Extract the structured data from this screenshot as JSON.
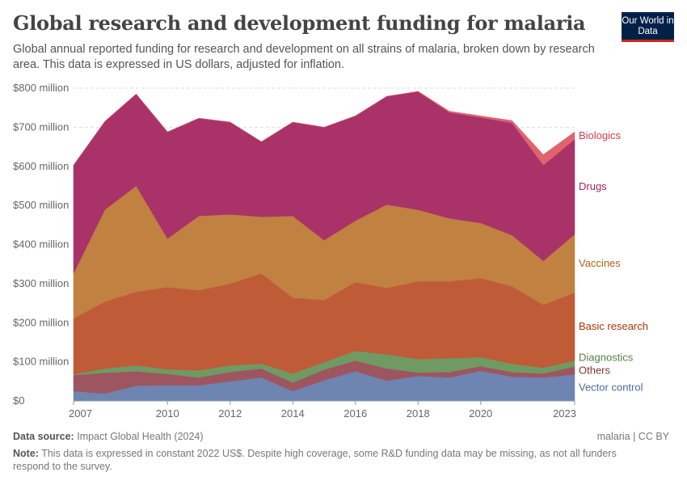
{
  "header": {
    "title": "Global research and development funding for malaria",
    "subtitle": "Global annual reported funding for research and development on all strains of malaria, broken down by research area. This data is expressed in US dollars, adjusted for inflation.",
    "logo": "Our World in Data"
  },
  "chart_data": {
    "type": "area",
    "stacked": true,
    "title": "Global research and development funding for malaria",
    "xlabel": "",
    "ylabel": "",
    "ylim": [
      0,
      800
    ],
    "y_unit": "million US$ (constant 2022)",
    "grid": true,
    "y_ticks": [
      "$0",
      "$100 million",
      "$200 million",
      "$300 million",
      "$400 million",
      "$500 million",
      "$600 million",
      "$700 million",
      "$800 million"
    ],
    "x_ticks": [
      "2007",
      "2010",
      "2012",
      "2014",
      "2016",
      "2018",
      "2020",
      "2023"
    ],
    "x": [
      2007,
      2008,
      2009,
      2010,
      2011,
      2012,
      2013,
      2014,
      2015,
      2016,
      2017,
      2018,
      2019,
      2020,
      2021,
      2022,
      2023
    ],
    "legend_placement": "right (inline labels)",
    "series": [
      {
        "name": "Vector control",
        "color": "#6d85b0",
        "label_color": "#4c6a9c",
        "values": [
          25,
          19,
          39,
          40,
          40,
          50,
          60,
          25,
          53,
          76,
          52,
          64,
          60,
          77,
          62,
          60,
          68
        ]
      },
      {
        "name": "Others",
        "color": "#9e5560",
        "label_color": "#883039",
        "values": [
          41,
          53,
          37,
          29,
          20,
          24,
          23,
          22,
          27,
          27,
          31,
          9,
          14,
          12,
          12,
          10,
          20
        ]
      },
      {
        "name": "Diagnostics",
        "color": "#6f9a63",
        "label_color": "#578145",
        "values": [
          2,
          11,
          15,
          12,
          18,
          17,
          12,
          23,
          19,
          25,
          36,
          34,
          35,
          23,
          21,
          15,
          15
        ]
      },
      {
        "name": "Basic research",
        "color": "#c05b37",
        "label_color": "#b13507",
        "values": [
          143,
          171,
          188,
          210,
          205,
          209,
          231,
          194,
          159,
          176,
          170,
          199,
          197,
          202,
          198,
          161,
          174
        ]
      },
      {
        "name": "Vaccines",
        "color": "#c08141",
        "label_color": "#b16214",
        "values": [
          115,
          235,
          271,
          124,
          190,
          177,
          145,
          209,
          153,
          157,
          213,
          183,
          161,
          141,
          131,
          112,
          149
        ]
      },
      {
        "name": "Drugs",
        "color": "#a93368",
        "label_color": "#a2275d",
        "values": [
          277,
          226,
          235,
          273,
          250,
          236,
          192,
          240,
          289,
          268,
          277,
          302,
          271,
          270,
          287,
          245,
          243
        ]
      },
      {
        "name": "Biologics",
        "color": "#e0636e",
        "label_color": "#d73c50",
        "values": [
          0,
          0,
          0,
          0,
          0,
          0,
          0,
          0,
          0,
          0,
          0,
          1,
          3,
          4,
          6,
          27,
          19
        ]
      }
    ]
  },
  "footer": {
    "source_label": "Data source:",
    "source": "Impact Global Health (2024)",
    "license": "malaria | CC BY",
    "note_label": "Note:",
    "note": "This data is expressed in constant 2022 US$. Despite high coverage, some R&D funding data may be missing, as not all funders respond to the survey."
  }
}
